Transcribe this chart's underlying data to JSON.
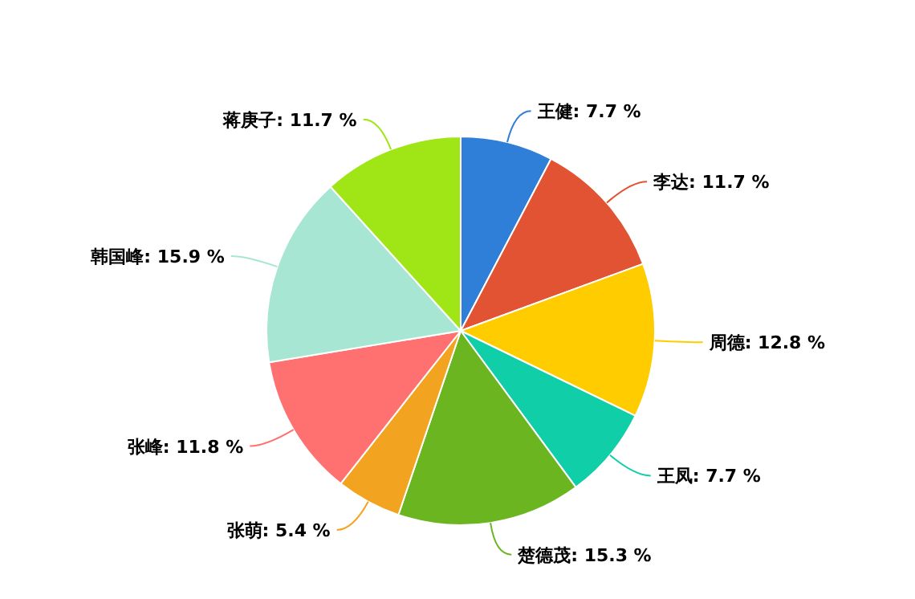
{
  "chart_data": {
    "type": "pie",
    "categories": [
      "王健",
      "李达",
      "周德",
      "王凤",
      "楚德茂",
      "张萌",
      "张峰",
      "韩国峰",
      "蒋庚子"
    ],
    "values": [
      7.7,
      11.7,
      12.8,
      7.7,
      15.3,
      5.4,
      11.8,
      15.9,
      11.7
    ],
    "value_labels": [
      "7.7 %",
      "11.7 %",
      "12.8 %",
      "7.7 %",
      "15.3 %",
      "5.4 %",
      "11.8 %",
      "15.9 %",
      "11.7 %"
    ],
    "colors": [
      "#2f7ed8",
      "#e15332",
      "#ffcc00",
      "#10cfa8",
      "#6ab520",
      "#f2a31f",
      "#ff7070",
      "#a8e6d4",
      "#a0e515"
    ]
  }
}
